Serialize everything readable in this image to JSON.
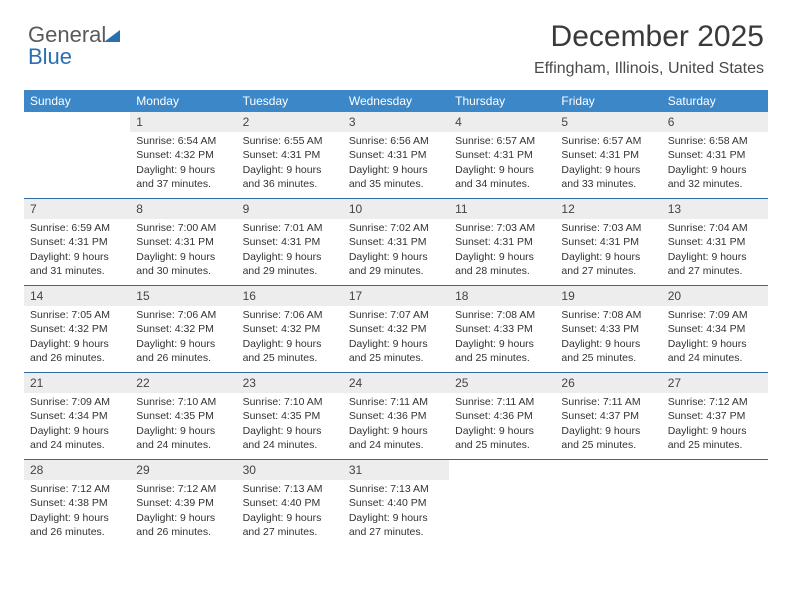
{
  "logo": {
    "word1": "General",
    "word2": "Blue"
  },
  "title": "December 2025",
  "location": "Effingham, Illinois, United States",
  "colors": {
    "header_bg": "#3b87c8",
    "header_fg": "#ffffff",
    "week_divider": "#2f6aa3",
    "daynum_bg": "#ededed",
    "text": "#333333",
    "logo_accent": "#2b6fb3",
    "page_bg": "#ffffff"
  },
  "typography": {
    "title_fontsize": 30,
    "location_fontsize": 16,
    "dayheader_fontsize": 12,
    "daynum_fontsize": 12,
    "cell_fontsize": 10.5,
    "logo_fontsize": 22
  },
  "day_headers": [
    "Sunday",
    "Monday",
    "Tuesday",
    "Wednesday",
    "Thursday",
    "Friday",
    "Saturday"
  ],
  "weeks": [
    [
      null,
      {
        "n": "1",
        "sr": "Sunrise: 6:54 AM",
        "ss": "Sunset: 4:32 PM",
        "d1": "Daylight: 9 hours",
        "d2": "and 37 minutes."
      },
      {
        "n": "2",
        "sr": "Sunrise: 6:55 AM",
        "ss": "Sunset: 4:31 PM",
        "d1": "Daylight: 9 hours",
        "d2": "and 36 minutes."
      },
      {
        "n": "3",
        "sr": "Sunrise: 6:56 AM",
        "ss": "Sunset: 4:31 PM",
        "d1": "Daylight: 9 hours",
        "d2": "and 35 minutes."
      },
      {
        "n": "4",
        "sr": "Sunrise: 6:57 AM",
        "ss": "Sunset: 4:31 PM",
        "d1": "Daylight: 9 hours",
        "d2": "and 34 minutes."
      },
      {
        "n": "5",
        "sr": "Sunrise: 6:57 AM",
        "ss": "Sunset: 4:31 PM",
        "d1": "Daylight: 9 hours",
        "d2": "and 33 minutes."
      },
      {
        "n": "6",
        "sr": "Sunrise: 6:58 AM",
        "ss": "Sunset: 4:31 PM",
        "d1": "Daylight: 9 hours",
        "d2": "and 32 minutes."
      }
    ],
    [
      {
        "n": "7",
        "sr": "Sunrise: 6:59 AM",
        "ss": "Sunset: 4:31 PM",
        "d1": "Daylight: 9 hours",
        "d2": "and 31 minutes."
      },
      {
        "n": "8",
        "sr": "Sunrise: 7:00 AM",
        "ss": "Sunset: 4:31 PM",
        "d1": "Daylight: 9 hours",
        "d2": "and 30 minutes."
      },
      {
        "n": "9",
        "sr": "Sunrise: 7:01 AM",
        "ss": "Sunset: 4:31 PM",
        "d1": "Daylight: 9 hours",
        "d2": "and 29 minutes."
      },
      {
        "n": "10",
        "sr": "Sunrise: 7:02 AM",
        "ss": "Sunset: 4:31 PM",
        "d1": "Daylight: 9 hours",
        "d2": "and 29 minutes."
      },
      {
        "n": "11",
        "sr": "Sunrise: 7:03 AM",
        "ss": "Sunset: 4:31 PM",
        "d1": "Daylight: 9 hours",
        "d2": "and 28 minutes."
      },
      {
        "n": "12",
        "sr": "Sunrise: 7:03 AM",
        "ss": "Sunset: 4:31 PM",
        "d1": "Daylight: 9 hours",
        "d2": "and 27 minutes."
      },
      {
        "n": "13",
        "sr": "Sunrise: 7:04 AM",
        "ss": "Sunset: 4:31 PM",
        "d1": "Daylight: 9 hours",
        "d2": "and 27 minutes."
      }
    ],
    [
      {
        "n": "14",
        "sr": "Sunrise: 7:05 AM",
        "ss": "Sunset: 4:32 PM",
        "d1": "Daylight: 9 hours",
        "d2": "and 26 minutes."
      },
      {
        "n": "15",
        "sr": "Sunrise: 7:06 AM",
        "ss": "Sunset: 4:32 PM",
        "d1": "Daylight: 9 hours",
        "d2": "and 26 minutes."
      },
      {
        "n": "16",
        "sr": "Sunrise: 7:06 AM",
        "ss": "Sunset: 4:32 PM",
        "d1": "Daylight: 9 hours",
        "d2": "and 25 minutes."
      },
      {
        "n": "17",
        "sr": "Sunrise: 7:07 AM",
        "ss": "Sunset: 4:32 PM",
        "d1": "Daylight: 9 hours",
        "d2": "and 25 minutes."
      },
      {
        "n": "18",
        "sr": "Sunrise: 7:08 AM",
        "ss": "Sunset: 4:33 PM",
        "d1": "Daylight: 9 hours",
        "d2": "and 25 minutes."
      },
      {
        "n": "19",
        "sr": "Sunrise: 7:08 AM",
        "ss": "Sunset: 4:33 PM",
        "d1": "Daylight: 9 hours",
        "d2": "and 25 minutes."
      },
      {
        "n": "20",
        "sr": "Sunrise: 7:09 AM",
        "ss": "Sunset: 4:34 PM",
        "d1": "Daylight: 9 hours",
        "d2": "and 24 minutes."
      }
    ],
    [
      {
        "n": "21",
        "sr": "Sunrise: 7:09 AM",
        "ss": "Sunset: 4:34 PM",
        "d1": "Daylight: 9 hours",
        "d2": "and 24 minutes."
      },
      {
        "n": "22",
        "sr": "Sunrise: 7:10 AM",
        "ss": "Sunset: 4:35 PM",
        "d1": "Daylight: 9 hours",
        "d2": "and 24 minutes."
      },
      {
        "n": "23",
        "sr": "Sunrise: 7:10 AM",
        "ss": "Sunset: 4:35 PM",
        "d1": "Daylight: 9 hours",
        "d2": "and 24 minutes."
      },
      {
        "n": "24",
        "sr": "Sunrise: 7:11 AM",
        "ss": "Sunset: 4:36 PM",
        "d1": "Daylight: 9 hours",
        "d2": "and 24 minutes."
      },
      {
        "n": "25",
        "sr": "Sunrise: 7:11 AM",
        "ss": "Sunset: 4:36 PM",
        "d1": "Daylight: 9 hours",
        "d2": "and 25 minutes."
      },
      {
        "n": "26",
        "sr": "Sunrise: 7:11 AM",
        "ss": "Sunset: 4:37 PM",
        "d1": "Daylight: 9 hours",
        "d2": "and 25 minutes."
      },
      {
        "n": "27",
        "sr": "Sunrise: 7:12 AM",
        "ss": "Sunset: 4:37 PM",
        "d1": "Daylight: 9 hours",
        "d2": "and 25 minutes."
      }
    ],
    [
      {
        "n": "28",
        "sr": "Sunrise: 7:12 AM",
        "ss": "Sunset: 4:38 PM",
        "d1": "Daylight: 9 hours",
        "d2": "and 26 minutes."
      },
      {
        "n": "29",
        "sr": "Sunrise: 7:12 AM",
        "ss": "Sunset: 4:39 PM",
        "d1": "Daylight: 9 hours",
        "d2": "and 26 minutes."
      },
      {
        "n": "30",
        "sr": "Sunrise: 7:13 AM",
        "ss": "Sunset: 4:40 PM",
        "d1": "Daylight: 9 hours",
        "d2": "and 27 minutes."
      },
      {
        "n": "31",
        "sr": "Sunrise: 7:13 AM",
        "ss": "Sunset: 4:40 PM",
        "d1": "Daylight: 9 hours",
        "d2": "and 27 minutes."
      },
      null,
      null,
      null
    ]
  ]
}
